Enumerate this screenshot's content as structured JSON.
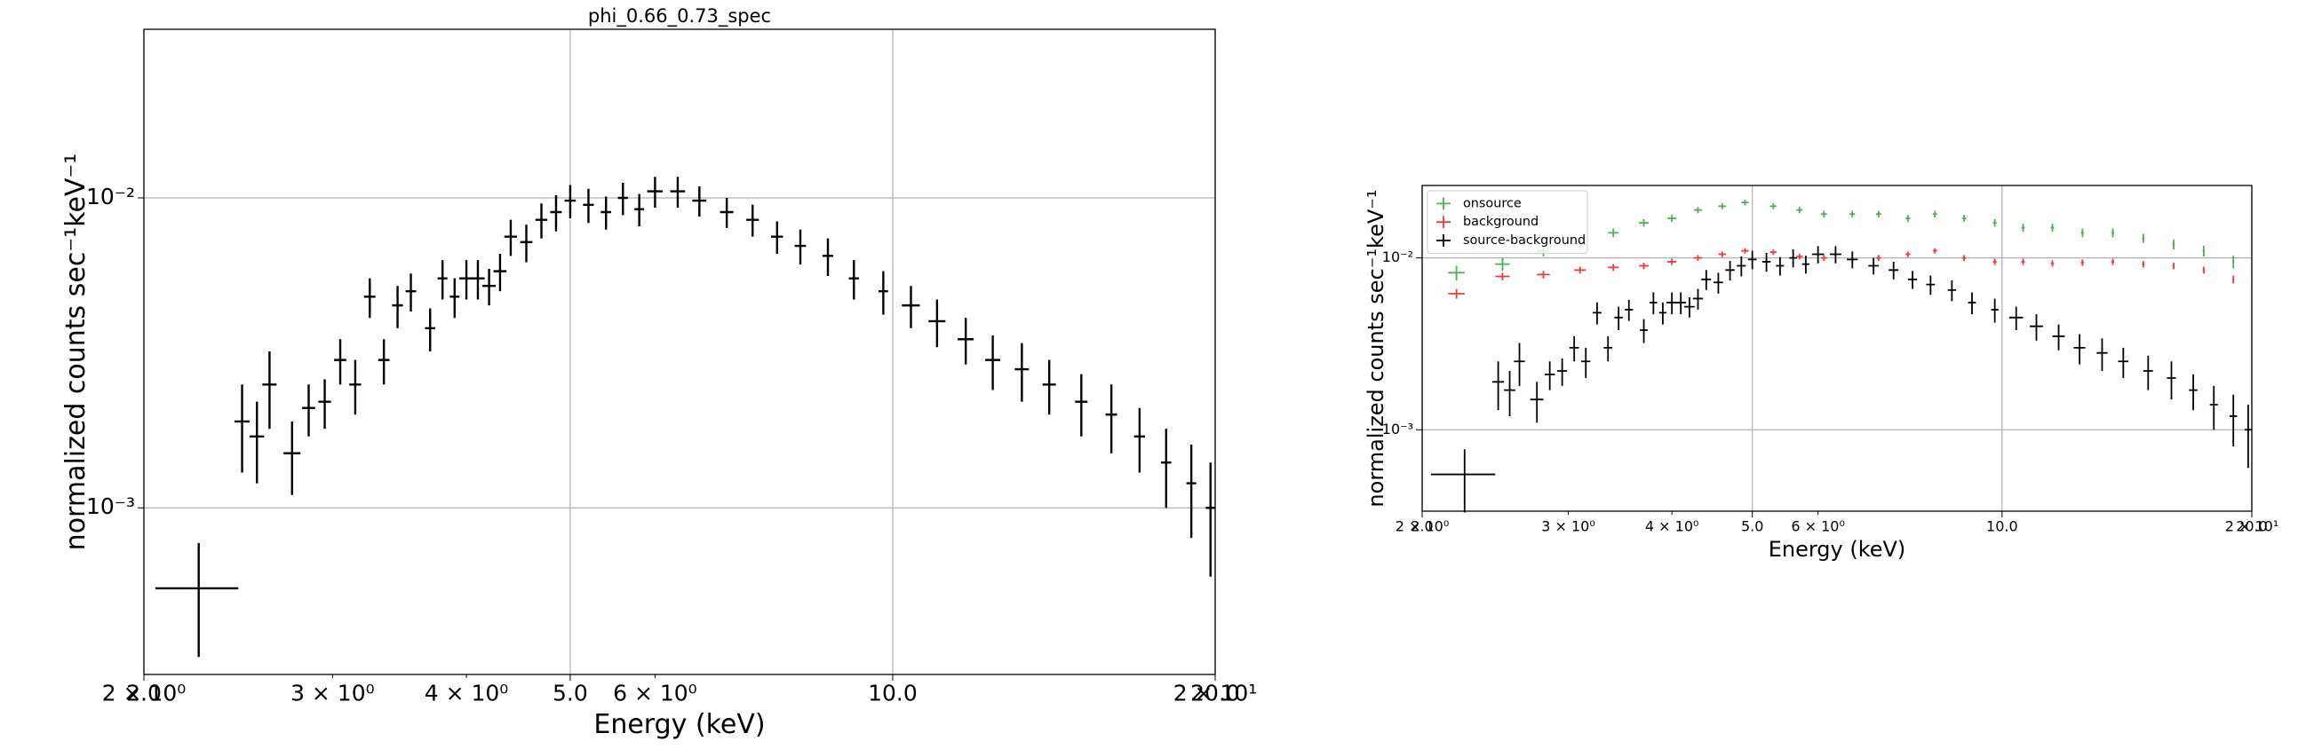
{
  "chart_data": [
    {
      "type": "errorbar",
      "title": "phi_0.66_0.73_spec",
      "x_label": "Energy (keV)",
      "y_label": "normalized counts sec⁻¹keV⁻¹",
      "xscale": "log",
      "yscale": "log",
      "grid": true,
      "xlim": [
        2,
        20
      ],
      "ylim": [
        0.00029,
        0.035
      ],
      "xticks": [
        {
          "value": 2,
          "label": "2.0"
        },
        {
          "value": 5,
          "label": "5.0"
        },
        {
          "value": 10,
          "label": "10.0"
        },
        {
          "value": 20,
          "label": "20.0"
        }
      ],
      "xminorticks": [
        {
          "value": 2,
          "label": "2 × 10⁰"
        },
        {
          "value": 3,
          "label": "3 × 10⁰"
        },
        {
          "value": 4,
          "label": "4 × 10⁰"
        },
        {
          "value": 6,
          "label": "6 × 10⁰"
        },
        {
          "value": 20,
          "label": "2 × 10¹"
        }
      ],
      "yticks": [
        {
          "value": 0.001,
          "label": "10⁻³"
        },
        {
          "value": 0.01,
          "label": "10⁻²"
        }
      ],
      "series": [
        {
          "color": "#000000",
          "x": [
            2.25,
            2.47,
            2.55,
            2.62,
            2.75,
            2.85,
            2.95,
            3.05,
            3.15,
            3.25,
            3.35,
            3.45,
            3.55,
            3.7,
            3.8,
            3.9,
            4.0,
            4.1,
            4.2,
            4.3,
            4.4,
            4.55,
            4.7,
            4.85,
            5.0,
            5.2,
            5.4,
            5.6,
            5.8,
            6.0,
            6.3,
            6.6,
            7.0,
            7.4,
            7.8,
            8.2,
            8.7,
            9.2,
            9.8,
            10.4,
            11.0,
            11.7,
            12.4,
            13.2,
            14.0,
            15.0,
            16.0,
            17.0,
            18.0,
            19.0,
            19.8
          ],
          "xerr": [
            0.2,
            0.04,
            0.04,
            0.04,
            0.05,
            0.04,
            0.04,
            0.04,
            0.04,
            0.04,
            0.04,
            0.04,
            0.04,
            0.04,
            0.04,
            0.04,
            0.06,
            0.06,
            0.06,
            0.06,
            0.06,
            0.06,
            0.06,
            0.06,
            0.06,
            0.06,
            0.06,
            0.06,
            0.06,
            0.1,
            0.1,
            0.1,
            0.1,
            0.1,
            0.1,
            0.1,
            0.1,
            0.1,
            0.1,
            0.2,
            0.2,
            0.2,
            0.2,
            0.2,
            0.2,
            0.2,
            0.2,
            0.2,
            0.2,
            0.2,
            0.2
          ],
          "values": [
            0.00055,
            0.0019,
            0.0017,
            0.0025,
            0.0015,
            0.0021,
            0.0022,
            0.003,
            0.0025,
            0.0048,
            0.003,
            0.0045,
            0.005,
            0.0038,
            0.0055,
            0.0048,
            0.0055,
            0.0055,
            0.0052,
            0.0058,
            0.0075,
            0.0072,
            0.0085,
            0.009,
            0.0098,
            0.0095,
            0.009,
            0.01,
            0.0092,
            0.0105,
            0.0105,
            0.0098,
            0.009,
            0.0085,
            0.0075,
            0.007,
            0.0065,
            0.0055,
            0.005,
            0.0045,
            0.004,
            0.0035,
            0.003,
            0.0028,
            0.0025,
            0.0022,
            0.002,
            0.0017,
            0.0014,
            0.0012,
            0.001
          ],
          "yerr": [
            0.00022,
            0.0006,
            0.0005,
            0.0007,
            0.0004,
            0.0004,
            0.0004,
            0.0005,
            0.0005,
            0.0007,
            0.0005,
            0.0007,
            0.0007,
            0.0006,
            0.0008,
            0.0007,
            0.0008,
            0.0008,
            0.0007,
            0.0008,
            0.001,
            0.001,
            0.0011,
            0.0012,
            0.0012,
            0.0012,
            0.0011,
            0.0012,
            0.0011,
            0.0012,
            0.0012,
            0.0011,
            0.001,
            0.001,
            0.0009,
            0.0009,
            0.0009,
            0.0008,
            0.0008,
            0.0007,
            0.0007,
            0.0006,
            0.0006,
            0.0006,
            0.0005,
            0.0005,
            0.0005,
            0.0004,
            0.0004,
            0.0004,
            0.0004
          ]
        }
      ]
    },
    {
      "type": "errorbar",
      "x_label": "Energy (keV)",
      "y_label": "normalized counts sec⁻¹keV⁻¹",
      "xscale": "log",
      "yscale": "log",
      "grid": true,
      "legend": "upper left",
      "xlim": [
        2,
        20
      ],
      "ylim": [
        0.000336,
        0.0264
      ],
      "xticks": [
        {
          "value": 2,
          "label": "2.0"
        },
        {
          "value": 5,
          "label": "5.0"
        },
        {
          "value": 10,
          "label": "10.0"
        },
        {
          "value": 20,
          "label": "20.0"
        }
      ],
      "xminorticks": [
        {
          "value": 2,
          "label": "2 × 10⁰"
        },
        {
          "value": 3,
          "label": "3 × 10⁰"
        },
        {
          "value": 4,
          "label": "4 × 10⁰"
        },
        {
          "value": 6,
          "label": "6 × 10⁰"
        },
        {
          "value": 20,
          "label": "2 × 10¹"
        }
      ],
      "yticks": [
        {
          "value": 0.001,
          "label": "10⁻³"
        },
        {
          "value": 0.01,
          "label": "10⁻²"
        }
      ],
      "series": [
        {
          "name": "onsource",
          "color": "#4caf50",
          "x": [
            2.2,
            2.5,
            2.8,
            3.1,
            3.4,
            3.7,
            4.0,
            4.3,
            4.6,
            4.9,
            5.3,
            5.7,
            6.1,
            6.6,
            7.1,
            7.7,
            8.3,
            9.0,
            9.8,
            10.6,
            11.5,
            12.5,
            13.6,
            14.8,
            16.1,
            17.5,
            19.0
          ],
          "xerr": [
            0.05,
            0.05,
            0.05,
            0.05,
            0.05,
            0.05,
            0.05,
            0.05,
            0.05,
            0.05,
            0.05,
            0.05,
            0.05,
            0.05,
            0.05,
            0.05,
            0.05,
            0.05,
            0.05,
            0.05,
            0.05,
            0.05,
            0.05,
            0.05,
            0.05,
            0.05,
            0.05
          ],
          "values": [
            0.0082,
            0.0092,
            0.011,
            0.012,
            0.014,
            0.016,
            0.017,
            0.019,
            0.02,
            0.021,
            0.02,
            0.019,
            0.018,
            0.018,
            0.018,
            0.017,
            0.018,
            0.017,
            0.016,
            0.015,
            0.015,
            0.014,
            0.014,
            0.013,
            0.012,
            0.011,
            0.0095
          ],
          "yerr": [
            0.0008,
            0.0008,
            0.0008,
            0.0008,
            0.0008,
            0.0008,
            0.0008,
            0.0008,
            0.0008,
            0.0008,
            0.0008,
            0.0008,
            0.0008,
            0.0008,
            0.0008,
            0.0008,
            0.0008,
            0.0008,
            0.0008,
            0.0008,
            0.0008,
            0.0008,
            0.0008,
            0.0008,
            0.0008,
            0.0008,
            0.0008
          ]
        },
        {
          "name": "background",
          "color": "#f03a3a",
          "x": [
            2.2,
            2.5,
            2.8,
            3.1,
            3.4,
            3.7,
            4.0,
            4.3,
            4.6,
            4.9,
            5.3,
            5.7,
            6.1,
            6.6,
            7.1,
            7.7,
            8.3,
            9.0,
            9.8,
            10.6,
            11.5,
            12.5,
            13.6,
            14.8,
            16.1,
            17.5,
            19.0
          ],
          "xerr": [
            0.05,
            0.05,
            0.05,
            0.05,
            0.05,
            0.05,
            0.05,
            0.05,
            0.05,
            0.05,
            0.05,
            0.05,
            0.05,
            0.05,
            0.05,
            0.05,
            0.05,
            0.05,
            0.05,
            0.05,
            0.05,
            0.05,
            0.05,
            0.05,
            0.05,
            0.05,
            0.05
          ],
          "values": [
            0.0062,
            0.0078,
            0.008,
            0.0085,
            0.0088,
            0.009,
            0.0095,
            0.01,
            0.0105,
            0.011,
            0.0108,
            0.0102,
            0.01,
            0.0098,
            0.01,
            0.0105,
            0.011,
            0.01,
            0.0095,
            0.0095,
            0.0093,
            0.0094,
            0.0095,
            0.0092,
            0.009,
            0.0085,
            0.0075
          ],
          "yerr": [
            0.0004,
            0.0004,
            0.0004,
            0.0004,
            0.0004,
            0.0004,
            0.0004,
            0.0004,
            0.0004,
            0.0004,
            0.0004,
            0.0004,
            0.0004,
            0.0004,
            0.0004,
            0.0004,
            0.0004,
            0.0004,
            0.0004,
            0.0004,
            0.0004,
            0.0004,
            0.0004,
            0.0004,
            0.0004,
            0.0004,
            0.0004
          ]
        },
        {
          "name": "source-background",
          "color": "#000000",
          "x": [
            2.25,
            2.47,
            2.55,
            2.62,
            2.75,
            2.85,
            2.95,
            3.05,
            3.15,
            3.25,
            3.35,
            3.45,
            3.55,
            3.7,
            3.8,
            3.9,
            4.0,
            4.1,
            4.2,
            4.3,
            4.4,
            4.55,
            4.7,
            4.85,
            5.0,
            5.2,
            5.4,
            5.6,
            5.8,
            6.0,
            6.3,
            6.6,
            7.0,
            7.4,
            7.8,
            8.2,
            8.7,
            9.2,
            9.8,
            10.4,
            11.0,
            11.7,
            12.4,
            13.2,
            14.0,
            15.0,
            16.0,
            17.0,
            18.0,
            19.0,
            19.8
          ],
          "xerr": [
            0.2,
            0.04,
            0.04,
            0.04,
            0.05,
            0.04,
            0.04,
            0.04,
            0.04,
            0.04,
            0.04,
            0.04,
            0.04,
            0.04,
            0.04,
            0.04,
            0.06,
            0.06,
            0.06,
            0.06,
            0.06,
            0.06,
            0.06,
            0.06,
            0.06,
            0.06,
            0.06,
            0.06,
            0.06,
            0.1,
            0.1,
            0.1,
            0.1,
            0.1,
            0.1,
            0.1,
            0.1,
            0.1,
            0.1,
            0.2,
            0.2,
            0.2,
            0.2,
            0.2,
            0.2,
            0.2,
            0.2,
            0.2,
            0.2,
            0.2,
            0.2
          ],
          "values": [
            0.00055,
            0.0019,
            0.0017,
            0.0025,
            0.0015,
            0.0021,
            0.0022,
            0.003,
            0.0025,
            0.0048,
            0.003,
            0.0045,
            0.005,
            0.0038,
            0.0055,
            0.0048,
            0.0055,
            0.0055,
            0.0052,
            0.0058,
            0.0075,
            0.0072,
            0.0085,
            0.009,
            0.0098,
            0.0095,
            0.009,
            0.01,
            0.0092,
            0.0105,
            0.0105,
            0.0098,
            0.009,
            0.0085,
            0.0075,
            0.007,
            0.0065,
            0.0055,
            0.005,
            0.0045,
            0.004,
            0.0035,
            0.003,
            0.0028,
            0.0025,
            0.0022,
            0.002,
            0.0017,
            0.0014,
            0.0012,
            0.001
          ],
          "yerr": [
            0.00022,
            0.0006,
            0.0005,
            0.0007,
            0.0004,
            0.0004,
            0.0004,
            0.0005,
            0.0005,
            0.0007,
            0.0005,
            0.0007,
            0.0007,
            0.0006,
            0.0008,
            0.0007,
            0.0008,
            0.0008,
            0.0007,
            0.0008,
            0.001,
            0.001,
            0.0011,
            0.0012,
            0.0012,
            0.0012,
            0.0011,
            0.0012,
            0.0011,
            0.0012,
            0.0012,
            0.0011,
            0.001,
            0.001,
            0.0009,
            0.0009,
            0.0009,
            0.0008,
            0.0008,
            0.0007,
            0.0007,
            0.0006,
            0.0006,
            0.0006,
            0.0005,
            0.0005,
            0.0005,
            0.0004,
            0.0004,
            0.0004,
            0.0004
          ]
        }
      ]
    }
  ]
}
